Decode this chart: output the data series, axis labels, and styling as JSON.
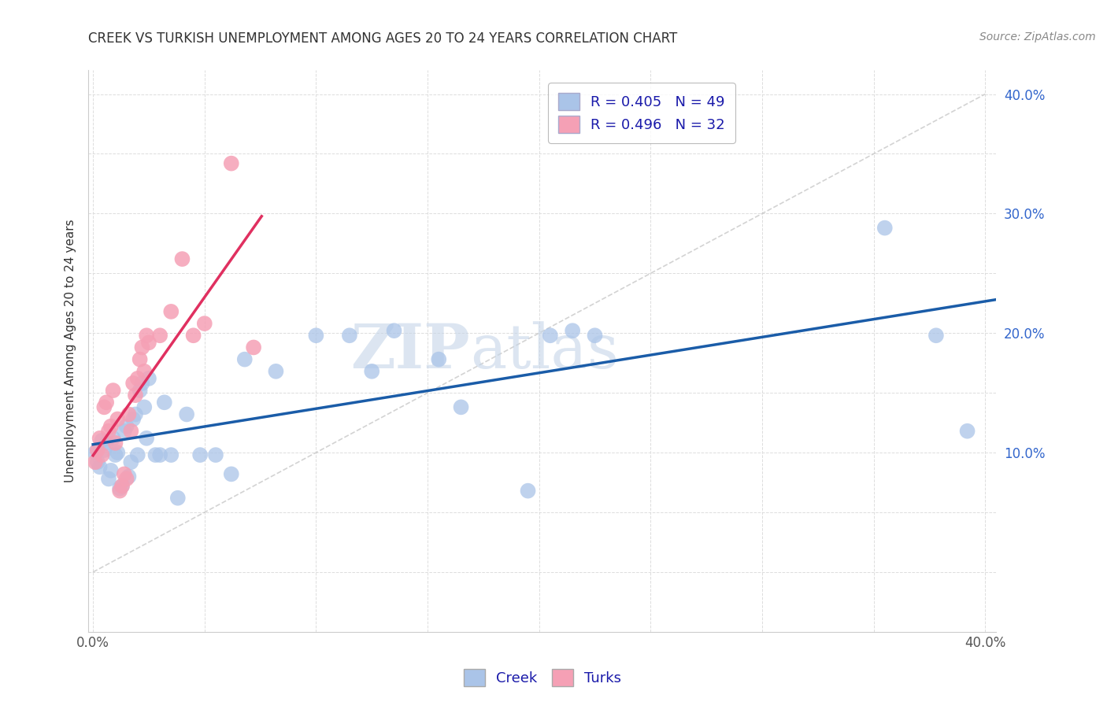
{
  "title": "CREEK VS TURKISH UNEMPLOYMENT AMONG AGES 20 TO 24 YEARS CORRELATION CHART",
  "source": "Source: ZipAtlas.com",
  "ylabel": "Unemployment Among Ages 20 to 24 years",
  "xlim": [
    -0.002,
    0.405
  ],
  "ylim": [
    -0.05,
    0.42
  ],
  "watermark_zip": "ZIP",
  "watermark_atlas": "atlas",
  "creek_color": "#aac4e8",
  "turks_color": "#f5a0b5",
  "creek_line_color": "#1a5ca8",
  "turks_line_color": "#e03060",
  "diagonal_color": "#c8c8c8",
  "R_creek": 0.405,
  "N_creek": 49,
  "R_turks": 0.496,
  "N_turks": 32,
  "creek_x": [
    0.001,
    0.002,
    0.003,
    0.004,
    0.005,
    0.006,
    0.007,
    0.008,
    0.009,
    0.01,
    0.011,
    0.012,
    0.013,
    0.014,
    0.015,
    0.016,
    0.017,
    0.018,
    0.019,
    0.02,
    0.021,
    0.022,
    0.023,
    0.024,
    0.025,
    0.028,
    0.03,
    0.032,
    0.035,
    0.038,
    0.042,
    0.048,
    0.055,
    0.062,
    0.068,
    0.082,
    0.1,
    0.115,
    0.125,
    0.135,
    0.155,
    0.165,
    0.195,
    0.205,
    0.215,
    0.225,
    0.355,
    0.378,
    0.392
  ],
  "creek_y": [
    0.1,
    0.092,
    0.088,
    0.11,
    0.102,
    0.108,
    0.078,
    0.085,
    0.112,
    0.098,
    0.1,
    0.07,
    0.072,
    0.118,
    0.122,
    0.08,
    0.092,
    0.128,
    0.132,
    0.098,
    0.152,
    0.158,
    0.138,
    0.112,
    0.162,
    0.098,
    0.098,
    0.142,
    0.098,
    0.062,
    0.132,
    0.098,
    0.098,
    0.082,
    0.178,
    0.168,
    0.198,
    0.198,
    0.168,
    0.202,
    0.178,
    0.138,
    0.068,
    0.198,
    0.202,
    0.198,
    0.288,
    0.198,
    0.118
  ],
  "turks_x": [
    0.001,
    0.002,
    0.003,
    0.004,
    0.005,
    0.006,
    0.007,
    0.008,
    0.009,
    0.01,
    0.011,
    0.012,
    0.013,
    0.014,
    0.015,
    0.016,
    0.017,
    0.018,
    0.019,
    0.02,
    0.021,
    0.022,
    0.023,
    0.024,
    0.025,
    0.03,
    0.035,
    0.04,
    0.045,
    0.05,
    0.062,
    0.072
  ],
  "turks_y": [
    0.092,
    0.102,
    0.112,
    0.098,
    0.138,
    0.142,
    0.118,
    0.122,
    0.152,
    0.108,
    0.128,
    0.068,
    0.072,
    0.082,
    0.078,
    0.132,
    0.118,
    0.158,
    0.148,
    0.162,
    0.178,
    0.188,
    0.168,
    0.198,
    0.192,
    0.198,
    0.218,
    0.262,
    0.198,
    0.208,
    0.342,
    0.188
  ]
}
